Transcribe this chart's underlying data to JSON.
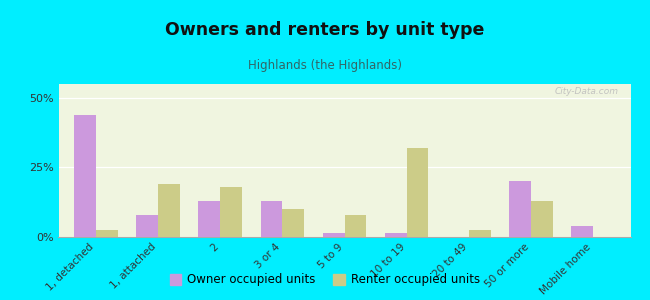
{
  "title": "Owners and renters by unit type",
  "subtitle": "Highlands (the Highlands)",
  "categories": [
    "1, detached",
    "1, attached",
    "2",
    "3 or 4",
    "5 to 9",
    "10 to 19",
    "20 to 49",
    "50 or more",
    "Mobile home"
  ],
  "owner_values": [
    44,
    8,
    13,
    13,
    1.5,
    1.5,
    0,
    20,
    4
  ],
  "renter_values": [
    2.5,
    19,
    18,
    10,
    8,
    32,
    2.5,
    13,
    0
  ],
  "owner_color": "#cc99dd",
  "renter_color": "#cccc88",
  "ylim": [
    0,
    55
  ],
  "yticks": [
    0,
    25,
    50
  ],
  "ytick_labels": [
    "0%",
    "25%",
    "50%"
  ],
  "plot_bg": "#f0f5e0",
  "outer_bg": "#00eeff",
  "bar_width": 0.35,
  "watermark": "City-Data.com",
  "legend_owner": "Owner occupied units",
  "legend_renter": "Renter occupied units",
  "title_color": "#111111",
  "subtitle_color": "#336666",
  "tick_color": "#333333"
}
